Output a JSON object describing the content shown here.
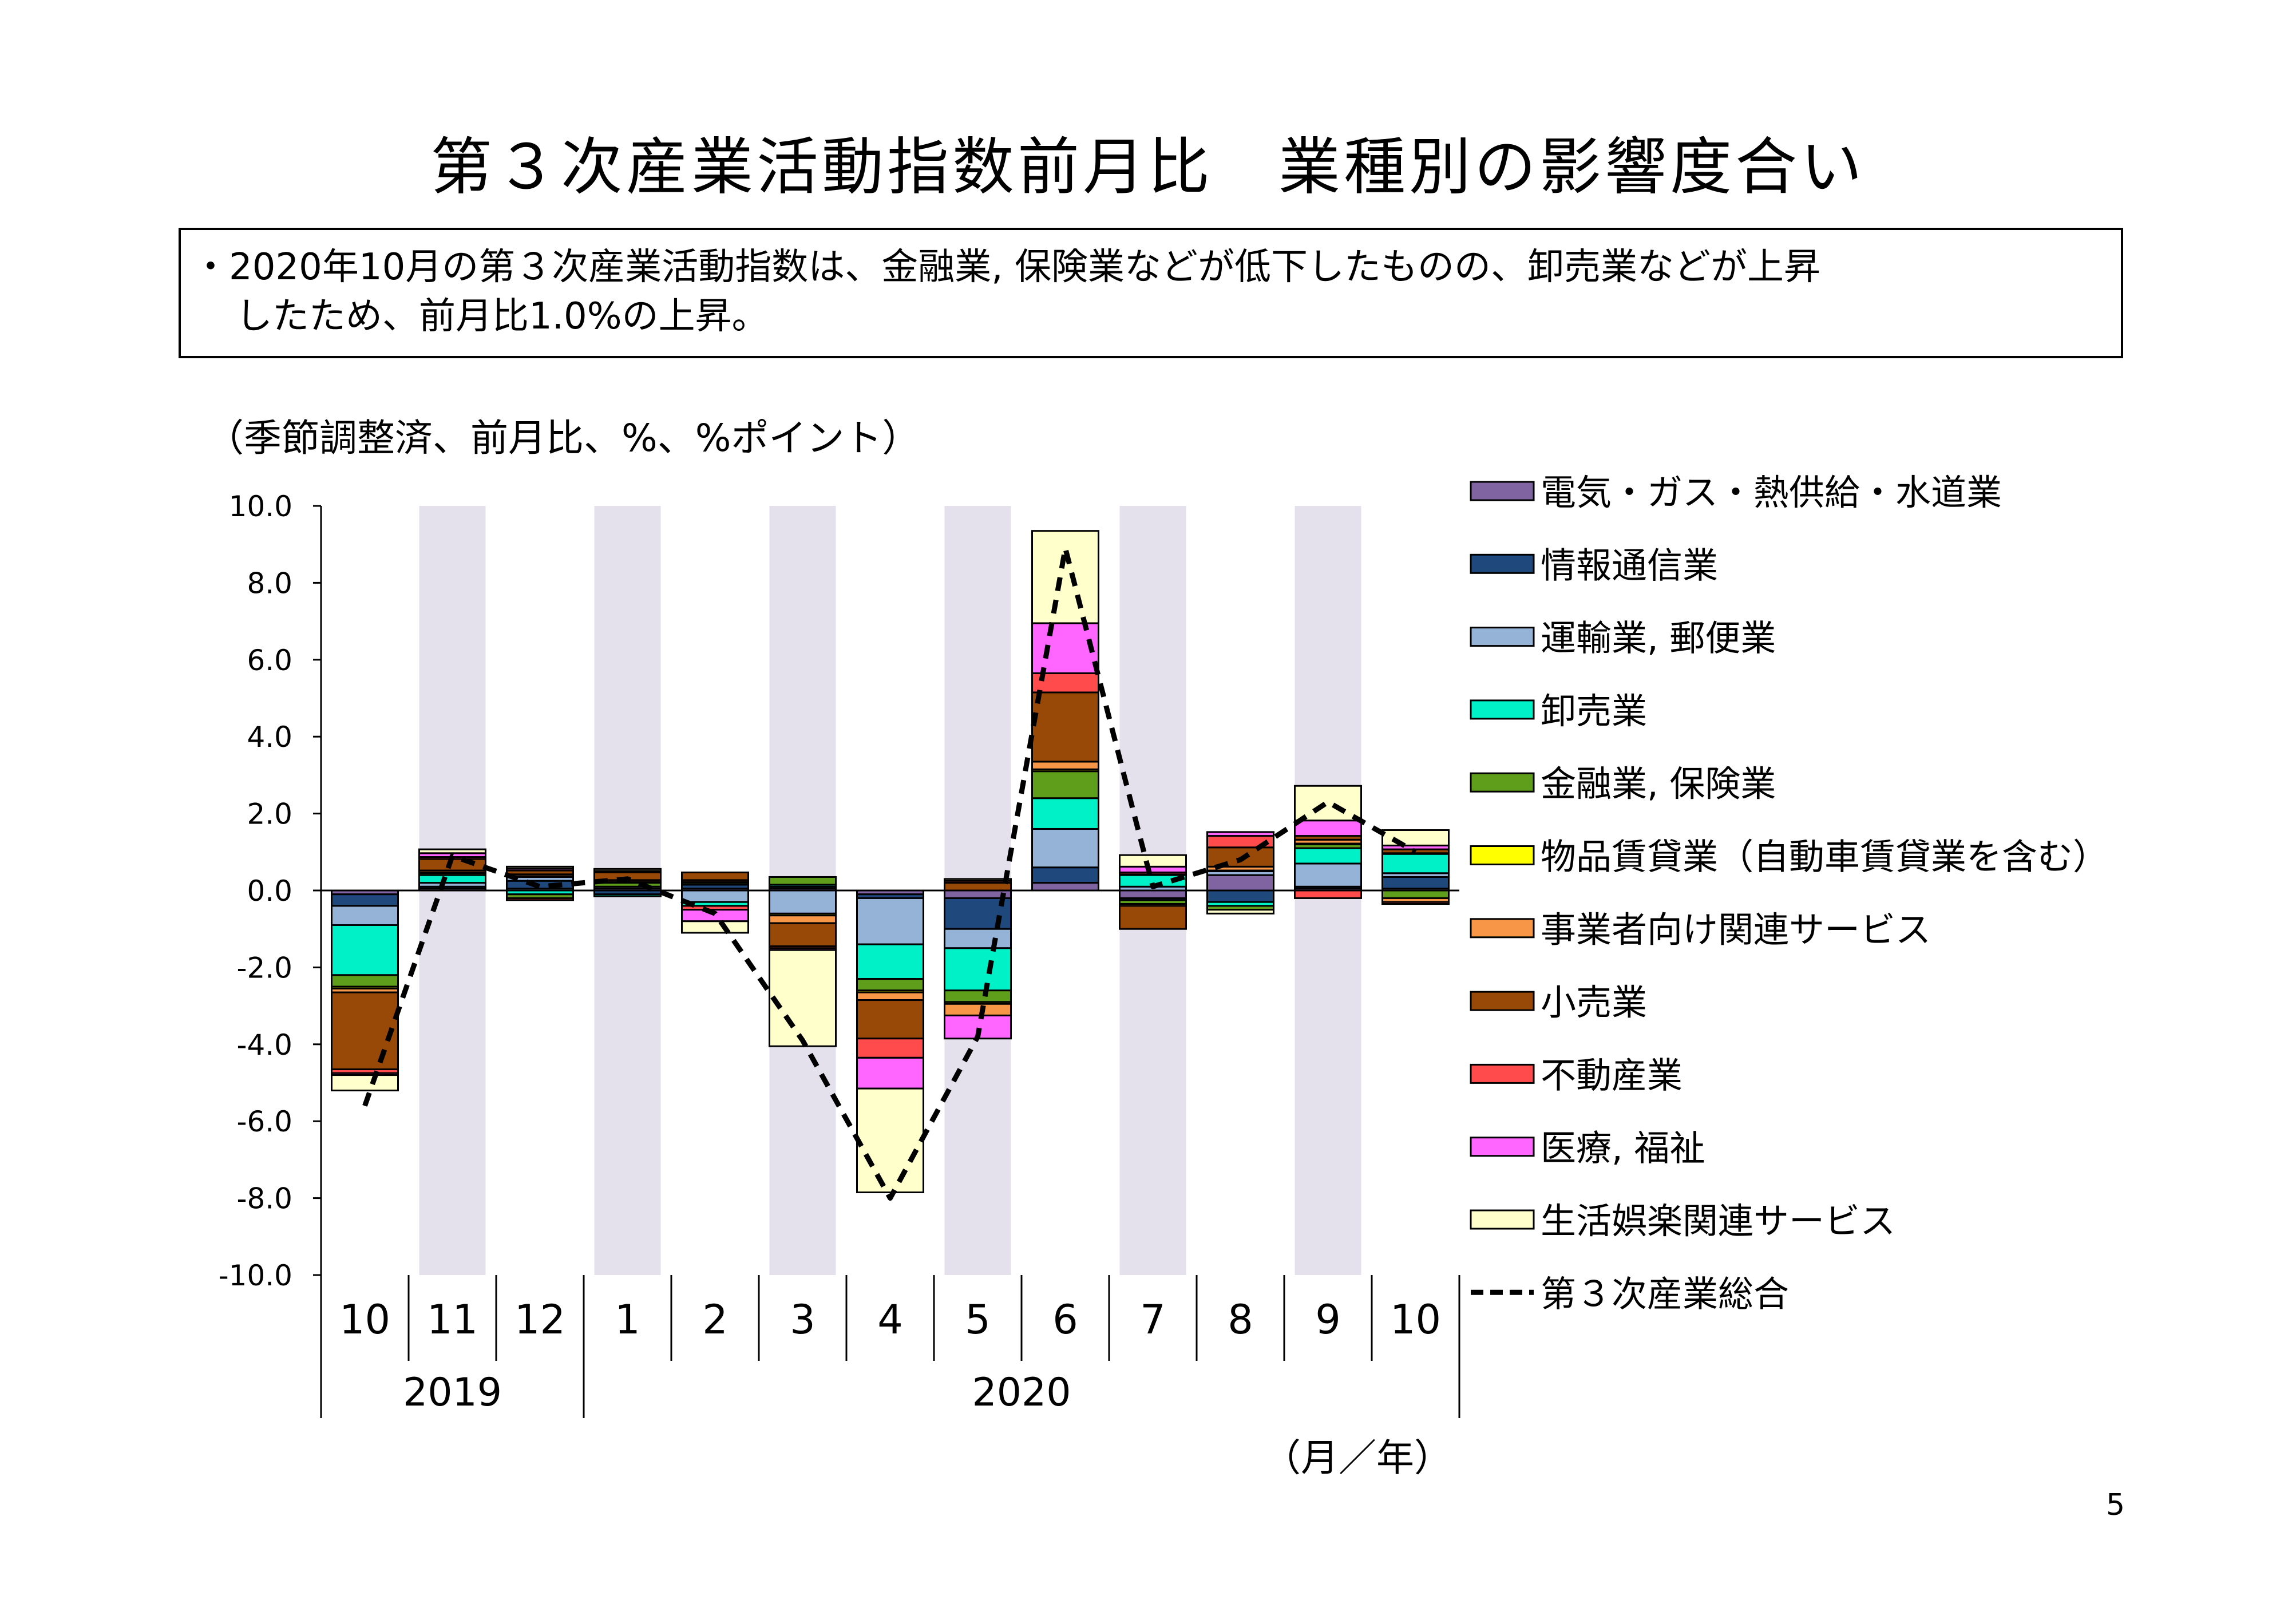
{
  "page": {
    "title": "第３次産業活動指数前月比　業種別の影響度合い",
    "summary_line1": "・2020年10月の第３次産業活動指数は、金融業, 保険業などが低下したものの、卸売業などが上昇",
    "summary_line2": "したため、前月比1.0%の上昇。",
    "unit_note": "（季節調整済、前月比、%、%ポイント）",
    "axis_unit_note": "（月／年）",
    "page_number": "5"
  },
  "chart_data": {
    "type": "bar",
    "stacked": true,
    "ylim": [
      -10,
      10
    ],
    "yticks": [
      "10.0",
      "8.0",
      "6.0",
      "4.0",
      "2.0",
      "0.0",
      "-2.0",
      "-4.0",
      "-6.0",
      "-8.0",
      "-10.0"
    ],
    "categories": [
      "10",
      "11",
      "12",
      "1",
      "2",
      "3",
      "4",
      "5",
      "6",
      "7",
      "8",
      "9",
      "10"
    ],
    "years": [
      {
        "label": "2019",
        "span": [
          0,
          2
        ]
      },
      {
        "label": "2020",
        "span": [
          3,
          12
        ]
      }
    ],
    "shaded_months": [
      1,
      3,
      5,
      7,
      9,
      11
    ],
    "legend_position": "right",
    "series": [
      {
        "name": "電気・ガス・熱供給・水道業",
        "color": "#8064a2",
        "values": [
          -0.1,
          0.05,
          0.05,
          0.05,
          0.05,
          0.05,
          -0.1,
          -0.2,
          0.2,
          -0.2,
          0.4,
          0.05,
          0.05
        ]
      },
      {
        "name": "情報通信業",
        "color": "#1f497d",
        "values": [
          -0.3,
          0.05,
          0.2,
          -0.1,
          0.1,
          0.05,
          -0.1,
          -0.8,
          0.4,
          -0.05,
          -0.3,
          0.05,
          0.3
        ]
      },
      {
        "name": "運輸業, 郵便業",
        "color": "#95b3d7",
        "values": [
          -0.5,
          0.1,
          0.1,
          0.05,
          -0.3,
          -0.6,
          -1.2,
          -0.5,
          1.0,
          0.1,
          0.1,
          0.6,
          0.1
        ]
      },
      {
        "name": "卸売業",
        "color": "#00f0c8",
        "values": [
          -1.3,
          0.2,
          -0.1,
          -0.05,
          -0.1,
          0.05,
          -0.9,
          -1.1,
          0.8,
          0.3,
          -0.1,
          0.4,
          0.5
        ]
      },
      {
        "name": "金融業, 保険業",
        "color": "#5e9e1a",
        "values": [
          -0.3,
          0.05,
          -0.1,
          0.1,
          0.05,
          0.2,
          -0.3,
          -0.3,
          0.7,
          -0.1,
          -0.1,
          0.1,
          -0.2
        ]
      },
      {
        "name": "物品賃貸業（自動車賃貸業を含む）",
        "color": "#ffff00",
        "values": [
          -0.05,
          0.02,
          0.02,
          0.02,
          0.02,
          -0.05,
          -0.05,
          -0.05,
          0.05,
          0.02,
          0.02,
          0.02,
          0.02
        ]
      },
      {
        "name": "事業者向け関連サービス",
        "color": "#f79646",
        "values": [
          -0.1,
          0.05,
          0.05,
          0.05,
          0.05,
          -0.2,
          -0.2,
          -0.3,
          0.2,
          -0.05,
          0.1,
          0.1,
          -0.1
        ]
      },
      {
        "name": "小売業",
        "color": "#984807",
        "values": [
          -2.0,
          0.3,
          0.1,
          0.2,
          0.2,
          -0.6,
          -1.0,
          0.2,
          1.8,
          -0.6,
          0.5,
          0.1,
          0.1
        ]
      },
      {
        "name": "不動産業",
        "color": "#ff4b4b",
        "values": [
          -0.1,
          0.05,
          -0.05,
          0.02,
          -0.1,
          -0.05,
          -0.5,
          0.05,
          0.5,
          0.05,
          0.3,
          -0.2,
          -0.05
        ]
      },
      {
        "name": "医療, 福祉",
        "color": "#ff66ff",
        "values": [
          -0.05,
          0.1,
          0.05,
          0.02,
          -0.3,
          -0.05,
          -0.8,
          -0.6,
          1.3,
          0.15,
          0.1,
          0.4,
          0.1
        ]
      },
      {
        "name": "生活娯楽関連サービス",
        "color": "#ffffcc",
        "values": [
          -0.4,
          0.1,
          0.05,
          0.05,
          -0.3,
          -2.5,
          -2.7,
          0.05,
          2.4,
          0.3,
          -0.1,
          0.9,
          0.4
        ]
      }
    ],
    "total": {
      "name": "第３次産業総合",
      "style": "dashed",
      "values": [
        -5.6,
        0.9,
        0.1,
        0.3,
        -0.6,
        -3.9,
        -8.0,
        -3.8,
        8.9,
        0.1,
        0.8,
        2.3,
        1.0
      ]
    }
  }
}
